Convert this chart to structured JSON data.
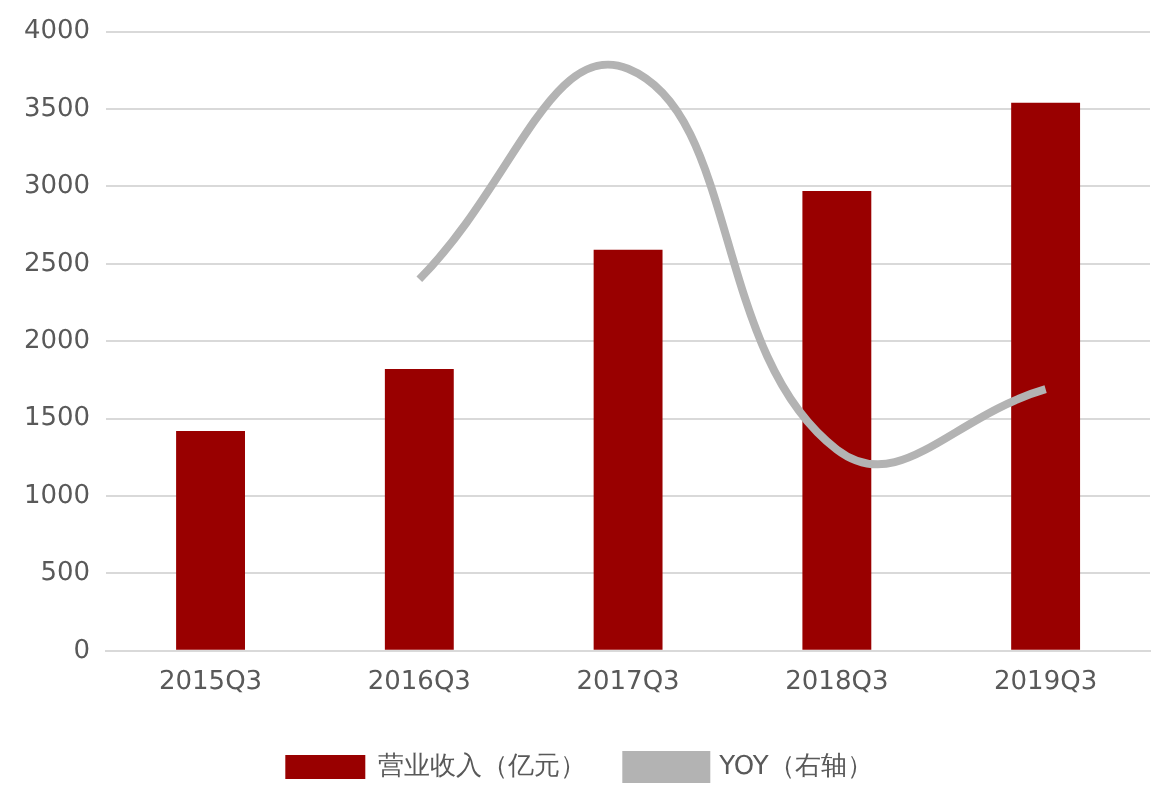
{
  "chart_data": {
    "type": "bar",
    "categories": [
      "2015Q3",
      "2016Q3",
      "2017Q3",
      "2018Q3",
      "2019Q3"
    ],
    "series": [
      {
        "name": "营业收入（亿元）",
        "color": "#990000",
        "values": [
          1420,
          1820,
          2590,
          2970,
          3540
        ]
      },
      {
        "name": "YOY（右轴）",
        "type": "line",
        "color": "#b3b3b3",
        "values": [
          null,
          2400,
          3760,
          1300,
          1690
        ]
      }
    ],
    "ylim": [
      0,
      4000
    ],
    "yticks": [
      0,
      500,
      1000,
      1500,
      2000,
      2500,
      3000,
      3500,
      4000
    ],
    "grid": "y",
    "legend": "bottom",
    "marker": "none",
    "line_style": "solid"
  }
}
